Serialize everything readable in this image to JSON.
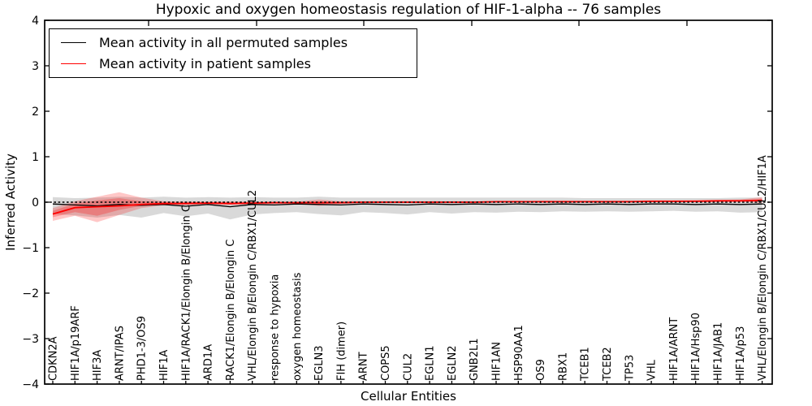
{
  "chart_data": {
    "type": "line",
    "title": "Hypoxic and oxygen homeostasis regulation of HIF-1-alpha -- 76 samples",
    "xlabel": "Cellular Entities",
    "ylabel": "Inferred Activity",
    "ylim": [
      -4,
      4
    ],
    "yticks": [
      4,
      3,
      2,
      1,
      0,
      -1,
      -2,
      -3,
      -4
    ],
    "ytick_labels": [
      "4",
      "3",
      "2",
      "1",
      "0",
      "−1",
      "−2",
      "−3",
      "−4"
    ],
    "grid": false,
    "legend_position": "upper left",
    "zero_line": {
      "y": 0,
      "style": "dashed",
      "color": "#000000"
    },
    "categories": [
      "CDKN2A",
      "HIF1A/p19ARF",
      "HIF3A",
      "ARNT/IPAS",
      "PHD1-3/OS9",
      "HIF1A",
      "HIF1A/RACK1/Elongin B/Elongin C",
      "ARD1A",
      "RACK1/Elongin B/Elongin C",
      "VHL/Elongin B/Elongin C/RBX1/CUL2",
      "response to hypoxia",
      "oxygen homeostasis",
      "EGLN3",
      "FIH (dimer)",
      "ARNT",
      "COPS5",
      "CUL2",
      "EGLN1",
      "EGLN2",
      "GNB2L1",
      "HIF1AN",
      "HSP90AA1",
      "OS9",
      "RBX1",
      "TCEB1",
      "TCEB2",
      "TP53",
      "VHL",
      "HIF1A/ARNT",
      "HIF1A/Hsp90",
      "HIF1A/JAB1",
      "HIF1A/p53",
      "VHL/Elongin B/Elongin C/RBX1/CUL2/HIF1A"
    ],
    "series": [
      {
        "name": "Mean activity in all permuted samples",
        "color": "#000000",
        "line_width": 1.3,
        "values": [
          -0.04,
          -0.06,
          -0.08,
          -0.05,
          -0.07,
          -0.05,
          -0.09,
          -0.05,
          -0.1,
          -0.05,
          -0.06,
          -0.04,
          -0.05,
          -0.06,
          -0.04,
          -0.05,
          -0.06,
          -0.04,
          -0.05,
          -0.04,
          -0.05,
          -0.04,
          -0.05,
          -0.04,
          -0.05,
          -0.04,
          -0.05,
          -0.04,
          -0.04,
          -0.05,
          -0.04,
          -0.05,
          -0.04
        ]
      },
      {
        "name": "Mean activity in patient samples",
        "color": "#ff0000",
        "line_width": 1.8,
        "values": [
          -0.26,
          -0.12,
          -0.1,
          -0.08,
          -0.05,
          -0.03,
          -0.03,
          -0.02,
          -0.03,
          -0.02,
          -0.01,
          -0.01,
          -0.01,
          -0.01,
          0.0,
          0.0,
          0.0,
          0.0,
          0.0,
          0.0,
          0.01,
          0.01,
          0.01,
          0.01,
          0.01,
          0.01,
          0.01,
          0.02,
          0.02,
          0.02,
          0.03,
          0.03,
          0.04
        ]
      }
    ],
    "bands": [
      {
        "name": "permuted-samples-range",
        "color": "rgba(128,128,128,0.30)",
        "upper": [
          0.11,
          0.09,
          0.1,
          0.12,
          0.1,
          0.12,
          0.1,
          0.11,
          0.1,
          0.11,
          0.1,
          0.1,
          0.12,
          0.1,
          0.1,
          0.1,
          0.1,
          0.1,
          0.1,
          0.1,
          0.1,
          0.1,
          0.1,
          0.1,
          0.09,
          0.09,
          0.09,
          0.09,
          0.09,
          0.09,
          0.09,
          0.1,
          0.1
        ],
        "lower": [
          -0.26,
          -0.29,
          -0.34,
          -0.28,
          -0.34,
          -0.24,
          -0.31,
          -0.25,
          -0.38,
          -0.27,
          -0.24,
          -0.22,
          -0.26,
          -0.29,
          -0.22,
          -0.24,
          -0.27,
          -0.22,
          -0.25,
          -0.22,
          -0.23,
          -0.21,
          -0.22,
          -0.2,
          -0.21,
          -0.2,
          -0.21,
          -0.2,
          -0.19,
          -0.21,
          -0.2,
          -0.23,
          -0.22
        ]
      },
      {
        "name": "patient-samples-range-outer",
        "color": "rgba(255,0,0,0.22)",
        "upper": [
          -0.13,
          0.02,
          0.12,
          0.22,
          0.1,
          0.02,
          0.01,
          0.01,
          0.01,
          0.01,
          0.01,
          0.01,
          0.06,
          0.02,
          0.02,
          0.02,
          0.02,
          0.02,
          0.02,
          0.02,
          0.02,
          0.02,
          0.03,
          0.03,
          0.03,
          0.03,
          0.03,
          0.04,
          0.04,
          0.05,
          0.05,
          0.06,
          0.11
        ],
        "lower": [
          -0.41,
          -0.3,
          -0.44,
          -0.28,
          -0.13,
          -0.07,
          -0.06,
          -0.05,
          -0.06,
          -0.05,
          -0.04,
          -0.03,
          -0.08,
          -0.04,
          -0.02,
          -0.02,
          -0.02,
          -0.02,
          -0.02,
          -0.02,
          -0.01,
          -0.01,
          -0.01,
          -0.01,
          -0.01,
          -0.01,
          -0.01,
          0.0,
          0.0,
          0.0,
          0.0,
          0.01,
          -0.02
        ]
      },
      {
        "name": "patient-samples-range-inner",
        "color": "rgba(255,0,0,0.25)",
        "upper": [
          -0.19,
          -0.03,
          0.04,
          0.09,
          0.02,
          0.0,
          0.0,
          0.0,
          0.0,
          0.0,
          0.0,
          0.0,
          0.02,
          0.01,
          0.01,
          0.01,
          0.01,
          0.01,
          0.01,
          0.01,
          0.02,
          0.02,
          0.02,
          0.02,
          0.02,
          0.02,
          0.02,
          0.03,
          0.03,
          0.03,
          0.04,
          0.04,
          0.07
        ],
        "lower": [
          -0.33,
          -0.22,
          -0.3,
          -0.17,
          -0.08,
          -0.05,
          -0.04,
          -0.04,
          -0.04,
          -0.03,
          -0.02,
          -0.02,
          -0.04,
          -0.02,
          -0.01,
          -0.01,
          -0.01,
          -0.01,
          -0.01,
          -0.01,
          0.0,
          0.0,
          0.0,
          0.0,
          0.0,
          0.0,
          0.0,
          0.01,
          0.01,
          0.01,
          0.02,
          0.02,
          0.01
        ]
      }
    ],
    "top_axis_tick_x": [
      183,
      316,
      448,
      581,
      713,
      846
    ]
  },
  "legend": {
    "items": [
      {
        "label": "Mean activity in all permuted samples",
        "color": "#000000"
      },
      {
        "label": "Mean activity in patient samples",
        "color": "#ff0000"
      }
    ]
  }
}
